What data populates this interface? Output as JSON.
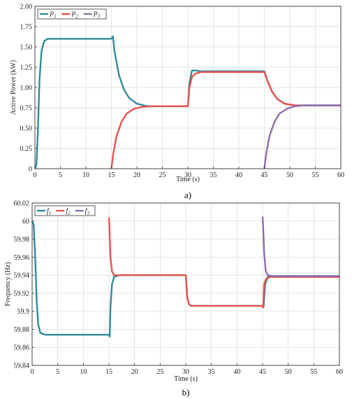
{
  "chart_data": [
    {
      "type": "line",
      "caption": "a)",
      "xlabel": "Time (s)",
      "ylabel": "Active Power (kW)",
      "xlim": [
        0,
        60
      ],
      "ylim": [
        0,
        2
      ],
      "xticks": [
        0,
        5,
        10,
        15,
        20,
        25,
        30,
        35,
        40,
        45,
        50,
        55,
        60
      ],
      "yticks": [
        "0",
        "0.25",
        "0.50",
        "0.75",
        "1.00",
        "1.25",
        "1.50",
        "1.75",
        "2.00"
      ],
      "grid": true,
      "legend_position": "top-left",
      "series": [
        {
          "name": "P",
          "sub": "1",
          "color": "#2f8b9a",
          "points": [
            [
              0,
              0
            ],
            [
              0.3,
              0.05
            ],
            [
              0.6,
              0.5
            ],
            [
              0.9,
              1.1
            ],
            [
              1.3,
              1.45
            ],
            [
              1.8,
              1.57
            ],
            [
              2.5,
              1.6
            ],
            [
              15,
              1.6
            ],
            [
              15.3,
              1.63
            ],
            [
              15.6,
              1.45
            ],
            [
              16.5,
              1.15
            ],
            [
              17.5,
              0.97
            ],
            [
              18.5,
              0.87
            ],
            [
              20,
              0.8
            ],
            [
              22,
              0.77
            ],
            [
              30,
              0.77
            ],
            [
              30.3,
              1.05
            ],
            [
              30.8,
              1.21
            ],
            [
              31.5,
              1.21
            ],
            [
              32.5,
              1.2
            ],
            [
              45,
              1.2
            ],
            [
              45.5,
              1.1
            ],
            [
              46.5,
              0.95
            ],
            [
              47.5,
              0.86
            ],
            [
              49,
              0.8
            ],
            [
              51,
              0.78
            ],
            [
              60,
              0.78
            ]
          ]
        },
        {
          "name": "P",
          "sub": "2",
          "color": "#e8534f",
          "points": [
            [
              15,
              0
            ],
            [
              15.4,
              0.2
            ],
            [
              16,
              0.4
            ],
            [
              17,
              0.58
            ],
            [
              18,
              0.68
            ],
            [
              19.5,
              0.74
            ],
            [
              21,
              0.76
            ],
            [
              23,
              0.77
            ],
            [
              30,
              0.77
            ],
            [
              30.3,
              1.0
            ],
            [
              30.8,
              1.13
            ],
            [
              31.5,
              1.17
            ],
            [
              32.5,
              1.19
            ],
            [
              45,
              1.19
            ],
            [
              45.5,
              1.1
            ],
            [
              46.5,
              0.95
            ],
            [
              47.5,
              0.86
            ],
            [
              49,
              0.8
            ],
            [
              51,
              0.78
            ],
            [
              60,
              0.78
            ]
          ]
        },
        {
          "name": "P",
          "sub": "3",
          "color": "#8b6fad",
          "points": [
            [
              45,
              0
            ],
            [
              45.4,
              0.2
            ],
            [
              46,
              0.4
            ],
            [
              47,
              0.58
            ],
            [
              48,
              0.68
            ],
            [
              49.5,
              0.74
            ],
            [
              51,
              0.77
            ],
            [
              53,
              0.78
            ],
            [
              60,
              0.78
            ]
          ]
        }
      ]
    },
    {
      "type": "line",
      "caption": "b)",
      "xlabel": "Time (s)",
      "ylabel": "Frequency (Hz)",
      "xlim": [
        0,
        60
      ],
      "ylim": [
        59.84,
        60.02
      ],
      "xticks": [
        0,
        5,
        10,
        15,
        20,
        25,
        30,
        35,
        40,
        45,
        50,
        55,
        60
      ],
      "yticks": [
        "59.84",
        "59.86",
        "59.88",
        "59.9",
        "59.92",
        "59.94",
        "59.96",
        "59.98",
        "60",
        "60.02"
      ],
      "grid": true,
      "legend_position": "top-left",
      "series": [
        {
          "name": "f",
          "sub": "1",
          "color": "#2f8b9a",
          "points": [
            [
              0,
              60.0
            ],
            [
              0.3,
              59.996
            ],
            [
              0.6,
              59.96
            ],
            [
              0.9,
              59.91
            ],
            [
              1.2,
              59.885
            ],
            [
              1.6,
              59.876
            ],
            [
              2.5,
              59.874
            ],
            [
              15,
              59.874
            ],
            [
              15.15,
              59.872
            ],
            [
              15.3,
              59.905
            ],
            [
              15.6,
              59.93
            ],
            [
              16,
              59.938
            ],
            [
              17,
              59.94
            ],
            [
              30,
              59.94
            ],
            [
              30.3,
              59.915
            ],
            [
              30.6,
              59.908
            ],
            [
              31,
              59.906
            ],
            [
              45,
              59.906
            ],
            [
              45.2,
              59.905
            ],
            [
              45.5,
              59.93
            ],
            [
              46,
              59.938
            ],
            [
              47,
              59.939
            ],
            [
              60,
              59.939
            ]
          ]
        },
        {
          "name": "f",
          "sub": "2",
          "color": "#e8534f",
          "points": [
            [
              15,
              60.004
            ],
            [
              15.1,
              59.99
            ],
            [
              15.3,
              59.96
            ],
            [
              15.6,
              59.944
            ],
            [
              16,
              59.94
            ],
            [
              30,
              59.94
            ],
            [
              30.3,
              59.915
            ],
            [
              30.6,
              59.908
            ],
            [
              31,
              59.906
            ],
            [
              45,
              59.906
            ],
            [
              45.1,
              59.904
            ],
            [
              45.3,
              59.93
            ],
            [
              45.7,
              59.936
            ],
            [
              46.5,
              59.938
            ],
            [
              60,
              59.938
            ]
          ]
        },
        {
          "name": "f",
          "sub": "3",
          "color": "#8b6fad",
          "points": [
            [
              45,
              60.005
            ],
            [
              45.1,
              59.995
            ],
            [
              45.3,
              59.965
            ],
            [
              45.6,
              59.945
            ],
            [
              46,
              59.94
            ],
            [
              47,
              59.939
            ],
            [
              60,
              59.939
            ]
          ]
        }
      ]
    }
  ]
}
